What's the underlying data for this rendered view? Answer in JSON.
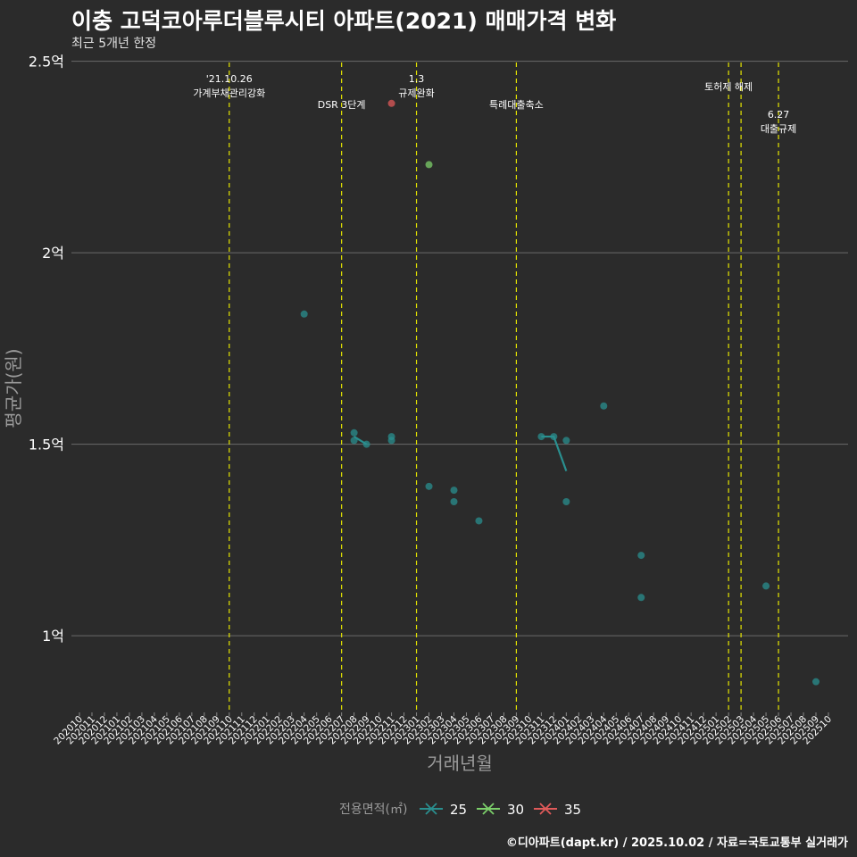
{
  "title": "이충 고덕코아루더블루시티 아파트(2021) 매매가격 변화",
  "subtitle": "최근 5개년 한정",
  "footer": "©디아파트(dapt.kr) / 2025.10.02 / 자료=국토교통부 실거래가",
  "chart_data": {
    "type": "scatter",
    "xlabel": "거래년월",
    "ylabel": "평균가(원)",
    "x_categories": [
      "202010",
      "202011",
      "202012",
      "202101",
      "202102",
      "202103",
      "202104",
      "202105",
      "202106",
      "202107",
      "202108",
      "202109",
      "202110",
      "202111",
      "202112",
      "202201",
      "202202",
      "202203",
      "202204",
      "202205",
      "202206",
      "202207",
      "202208",
      "202209",
      "202210",
      "202211",
      "202212",
      "202301",
      "202302",
      "202303",
      "202304",
      "202305",
      "202306",
      "202307",
      "202308",
      "202309",
      "202310",
      "202311",
      "202312",
      "202401",
      "202402",
      "202403",
      "202404",
      "202405",
      "202406",
      "202407",
      "202408",
      "202409",
      "202410",
      "202411",
      "202412",
      "202501",
      "202502",
      "202503",
      "202504",
      "202505",
      "202506",
      "202507",
      "202508",
      "202509",
      "202510"
    ],
    "ylim": [
      0.8,
      2.52
    ],
    "y_ticks": [
      {
        "value": 1.0,
        "label": "1억"
      },
      {
        "value": 1.5,
        "label": "1.5억"
      },
      {
        "value": 2.0,
        "label": "2억"
      },
      {
        "value": 2.5,
        "label": "2.5억"
      }
    ],
    "legend_title": "전용면적(㎡)",
    "series": [
      {
        "name": "25",
        "color": "#2a8f8f",
        "points": [
          {
            "x": "202204",
            "y": 1.84
          },
          {
            "x": "202208",
            "y": 1.53
          },
          {
            "x": "202208",
            "y": 1.51
          },
          {
            "x": "202209",
            "y": 1.5
          },
          {
            "x": "202211",
            "y": 1.52
          },
          {
            "x": "202211",
            "y": 1.51
          },
          {
            "x": "202302",
            "y": 1.39
          },
          {
            "x": "202304",
            "y": 1.38
          },
          {
            "x": "202304",
            "y": 1.35
          },
          {
            "x": "202306",
            "y": 1.3
          },
          {
            "x": "202311",
            "y": 1.52
          },
          {
            "x": "202312",
            "y": 1.52
          },
          {
            "x": "202401",
            "y": 1.51
          },
          {
            "x": "202401",
            "y": 1.35
          },
          {
            "x": "202404",
            "y": 1.6
          },
          {
            "x": "202407",
            "y": 1.21
          },
          {
            "x": "202407",
            "y": 1.1
          },
          {
            "x": "202505",
            "y": 1.13
          },
          {
            "x": "202509",
            "y": 0.88
          }
        ],
        "line": [
          {
            "x": "202208",
            "y": 1.52
          },
          {
            "x": "202209",
            "y": 1.5
          },
          {
            "x": "202311",
            "y": 1.52
          },
          {
            "x": "202312",
            "y": 1.52
          },
          {
            "x": "202401",
            "y": 1.43
          }
        ]
      },
      {
        "name": "30",
        "color": "#7ccf6a",
        "points": [
          {
            "x": "202302",
            "y": 2.23
          }
        ],
        "line": []
      },
      {
        "name": "35",
        "color": "#e05a5a",
        "points": [
          {
            "x": "202211",
            "y": 2.39
          }
        ],
        "line": []
      }
    ],
    "annotations": [
      {
        "x": "202110",
        "lines": [
          "'21.10.26",
          "가계부채관리강화"
        ],
        "level": 0
      },
      {
        "x": "202207",
        "lines": [
          "DSR 3단계"
        ],
        "level": 1
      },
      {
        "x": "202301",
        "lines": [
          "1.3",
          "규제완화"
        ],
        "level": 0
      },
      {
        "x": "202309",
        "lines": [
          "특례대출축소"
        ],
        "level": 1
      },
      {
        "x": "202502",
        "lines": [
          "토허제 해제"
        ],
        "level": 2
      },
      {
        "x": "202503",
        "lines": [],
        "level": 2
      },
      {
        "x": "202506",
        "lines": [
          "6.27",
          "대출규제"
        ],
        "level": 3
      }
    ]
  }
}
